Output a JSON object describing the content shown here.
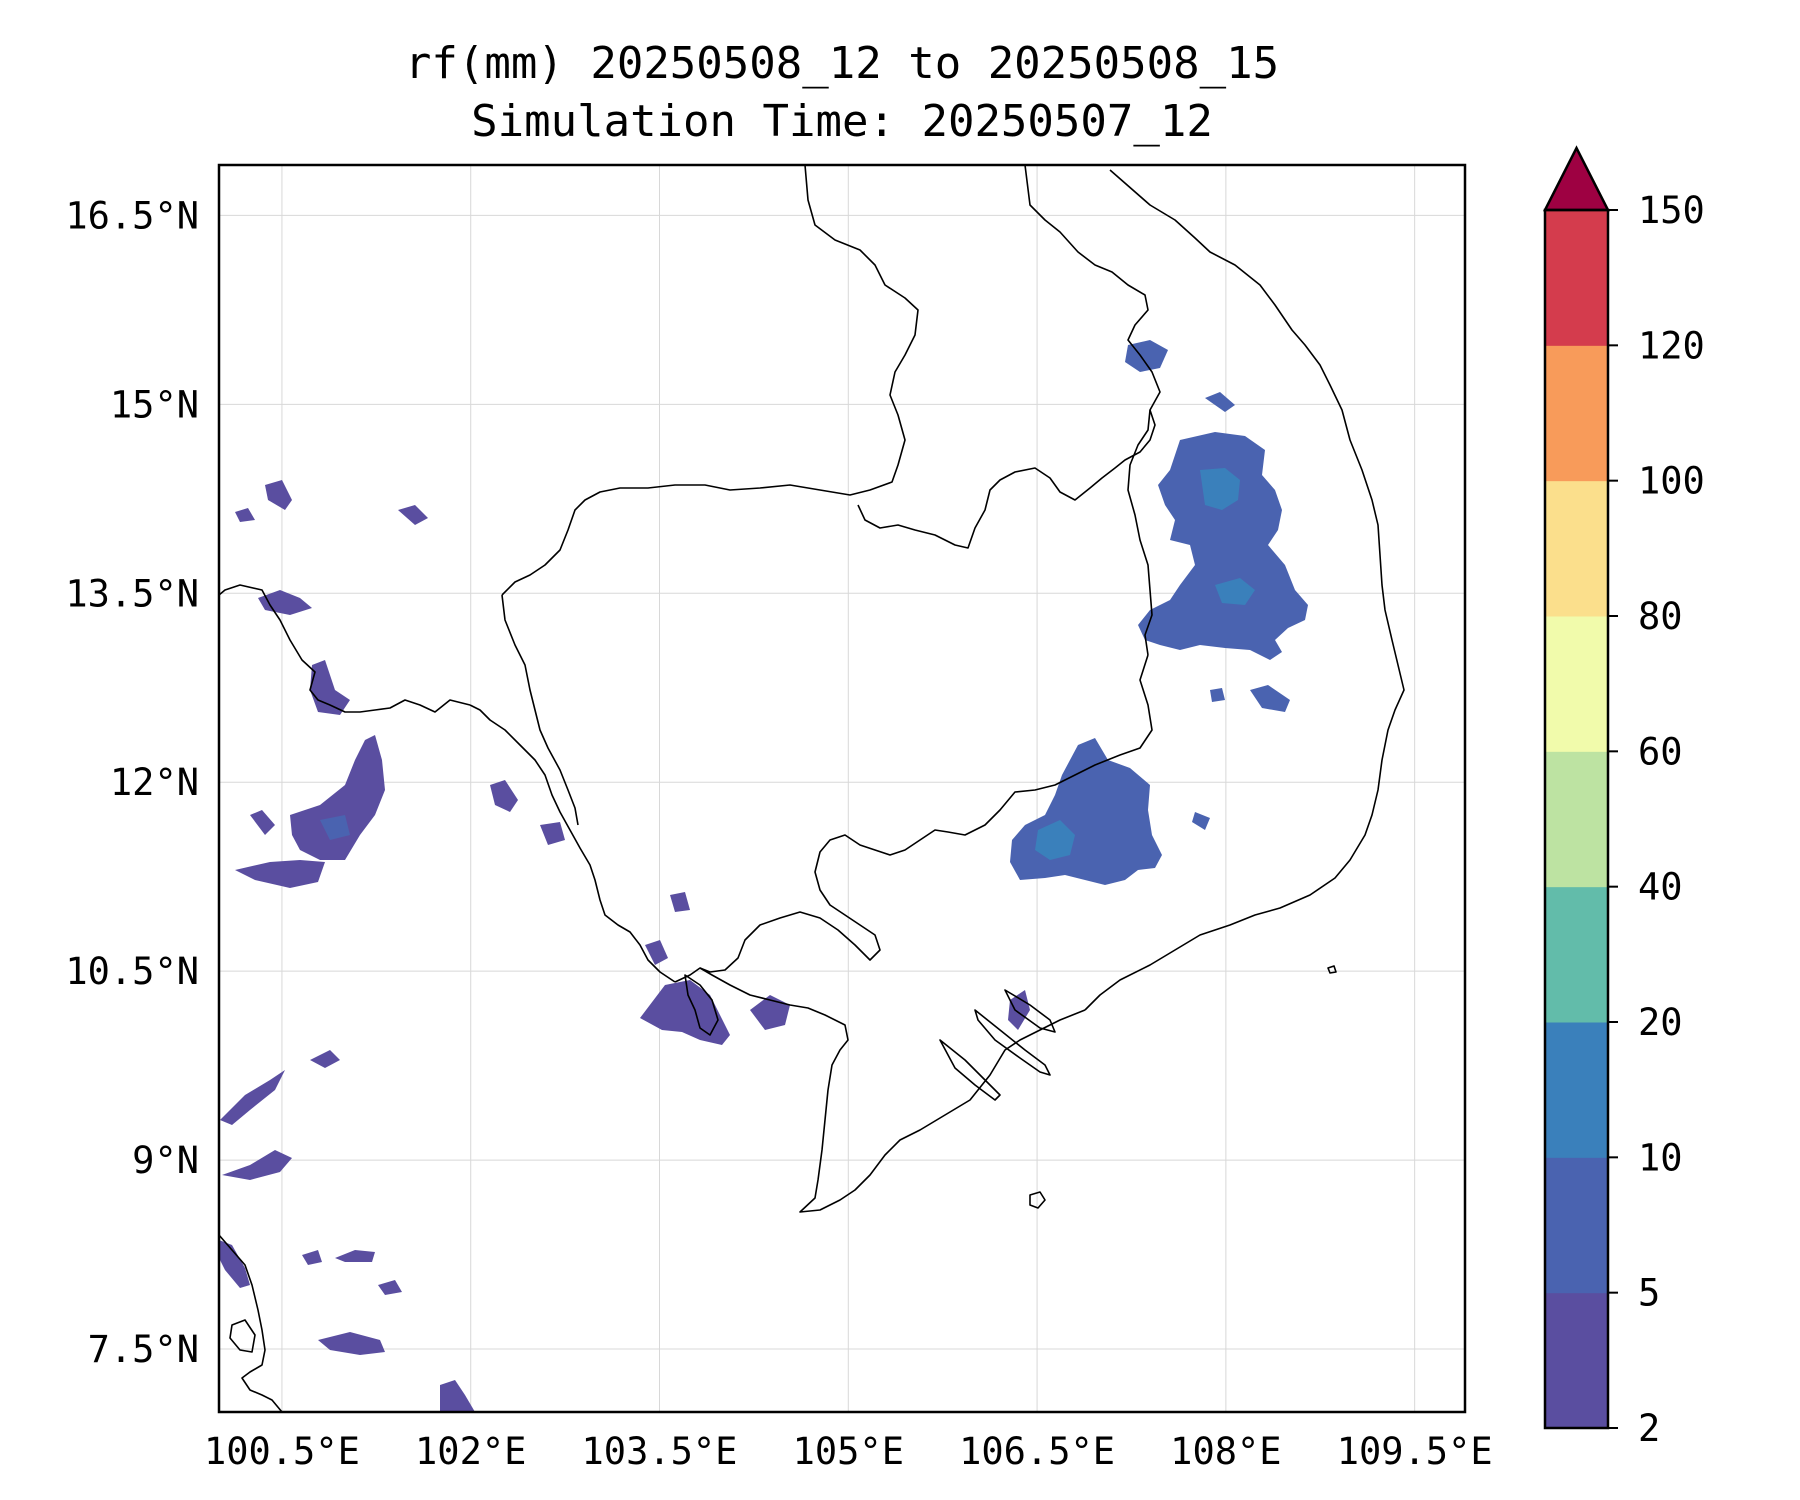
{
  "title": {
    "line1": "rf(mm) 20250508_12 to 20250508_15",
    "line2": "Simulation Time: 20250507_12"
  },
  "map": {
    "lon_range": [
      100.0,
      109.9
    ],
    "lat_range": [
      7.0,
      16.9
    ],
    "grid": true,
    "lon_ticks": [
      {
        "value": 100.5,
        "label": "100.5°E"
      },
      {
        "value": 102.0,
        "label": "102°E"
      },
      {
        "value": 103.5,
        "label": "103.5°E"
      },
      {
        "value": 105.0,
        "label": "105°E"
      },
      {
        "value": 106.5,
        "label": "106.5°E"
      },
      {
        "value": 108.0,
        "label": "108°E"
      },
      {
        "value": 109.5,
        "label": "109.5°E"
      }
    ],
    "lat_ticks": [
      {
        "value": 16.5,
        "label": "16.5°N"
      },
      {
        "value": 15.0,
        "label": "15°N"
      },
      {
        "value": 13.5,
        "label": "13.5°N"
      },
      {
        "value": 12.0,
        "label": "12°N"
      },
      {
        "value": 10.5,
        "label": "10.5°N"
      },
      {
        "value": 9.0,
        "label": "9°N"
      },
      {
        "value": 7.5,
        "label": "7.5°N"
      }
    ]
  },
  "colorbar": {
    "levels": [
      "2",
      "5",
      "10",
      "20",
      "40",
      "60",
      "80",
      "100",
      "120",
      "150"
    ],
    "colors": [
      "#5a4ea0",
      "#4a63b0",
      "#3a80bb",
      "#62bcaa",
      "#bde3a2",
      "#f1fbab",
      "#fbdf8c",
      "#f89b5a",
      "#d43c4d",
      "#9e0142"
    ],
    "extend": "max"
  },
  "rain_areas": [
    {
      "id": "central-highlands-north",
      "level": "5-10",
      "core_level": "10-20"
    },
    {
      "id": "central-highlands-south",
      "level": "5-10",
      "core_level": "10-20"
    },
    {
      "id": "dong-nai-area",
      "level": "5-10",
      "core_level": "10-20"
    },
    {
      "id": "gulf-of-thailand",
      "level": "2-5"
    },
    {
      "id": "cambodia-coast",
      "level": "2-5"
    },
    {
      "id": "thailand-east",
      "level": "2-5"
    }
  ]
}
